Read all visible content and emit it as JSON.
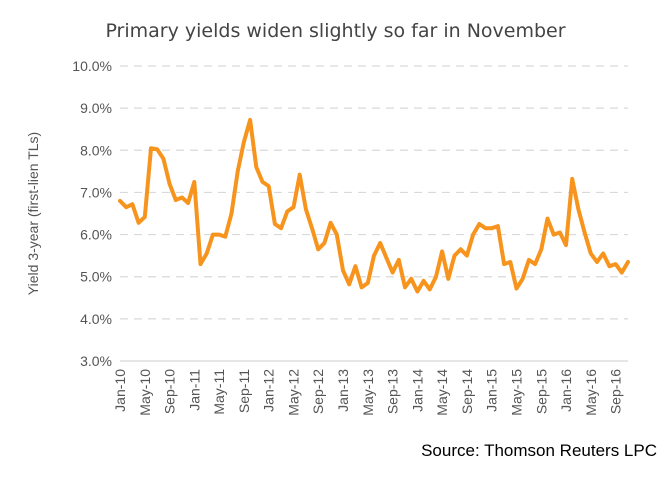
{
  "chart_data": {
    "type": "line",
    "title": "Primary yields widen slightly so far in November",
    "ylabel": "Yield 3-year (first-lien TLs)",
    "xlabel": "",
    "ylim": [
      3.0,
      10.0
    ],
    "ytick_values": [
      3.0,
      4.0,
      5.0,
      6.0,
      7.0,
      8.0,
      9.0,
      10.0
    ],
    "ytick_labels": [
      "3.0%",
      "4.0%",
      "5.0%",
      "6.0%",
      "7.0%",
      "8.0%",
      "9.0%",
      "10.0%"
    ],
    "x_start": "Jan-10",
    "x_tick_labels": [
      {
        "label": "Jan-10",
        "month_index": 0
      },
      {
        "label": "May-10",
        "month_index": 4
      },
      {
        "label": "Sep-10",
        "month_index": 8
      },
      {
        "label": "Jan-11",
        "month_index": 12
      },
      {
        "label": "May-11",
        "month_index": 16
      },
      {
        "label": "Sep-11",
        "month_index": 20
      },
      {
        "label": "Jan-12",
        "month_index": 24
      },
      {
        "label": "May-12",
        "month_index": 28
      },
      {
        "label": "Sep-12",
        "month_index": 32
      },
      {
        "label": "Jan-13",
        "month_index": 36
      },
      {
        "label": "May-13",
        "month_index": 40
      },
      {
        "label": "Sep-13",
        "month_index": 44
      },
      {
        "label": "Jan-14",
        "month_index": 48
      },
      {
        "label": "May-14",
        "month_index": 52
      },
      {
        "label": "Sep-14",
        "month_index": 56
      },
      {
        "label": "Jan-15",
        "month_index": 60
      },
      {
        "label": "May-15",
        "month_index": 64
      },
      {
        "label": "Sep-15",
        "month_index": 68
      },
      {
        "label": "Jan-16",
        "month_index": 72
      },
      {
        "label": "May-16",
        "month_index": 76
      },
      {
        "label": "Sep-16",
        "month_index": 80
      }
    ],
    "series": [
      {
        "color": "#F7941D",
        "values": [
          6.8,
          6.65,
          6.72,
          6.28,
          6.42,
          8.05,
          8.02,
          7.8,
          7.2,
          6.82,
          6.88,
          6.75,
          7.25,
          5.3,
          5.55,
          6.0,
          6.0,
          5.95,
          6.5,
          7.5,
          8.2,
          8.72,
          7.6,
          7.25,
          7.15,
          6.25,
          6.15,
          6.55,
          6.65,
          7.42,
          6.6,
          6.15,
          5.65,
          5.8,
          6.28,
          6.0,
          5.15,
          4.82,
          5.25,
          4.75,
          4.85,
          5.5,
          5.8,
          5.45,
          5.1,
          5.4,
          4.75,
          4.95,
          4.65,
          4.9,
          4.7,
          5.0,
          5.6,
          4.95,
          5.5,
          5.65,
          5.5,
          6.0,
          6.25,
          6.15,
          6.15,
          6.2,
          5.3,
          5.35,
          4.72,
          4.95,
          5.4,
          5.3,
          5.65,
          6.38,
          6.0,
          6.05,
          5.75,
          7.32,
          6.6,
          6.05,
          5.55,
          5.35,
          5.55,
          5.25,
          5.3,
          5.1,
          5.35
        ]
      }
    ],
    "grid": {
      "horizontal": true,
      "style": "dashed"
    },
    "legend": "none"
  },
  "source_note": "Source:  Thomson Reuters LPC"
}
